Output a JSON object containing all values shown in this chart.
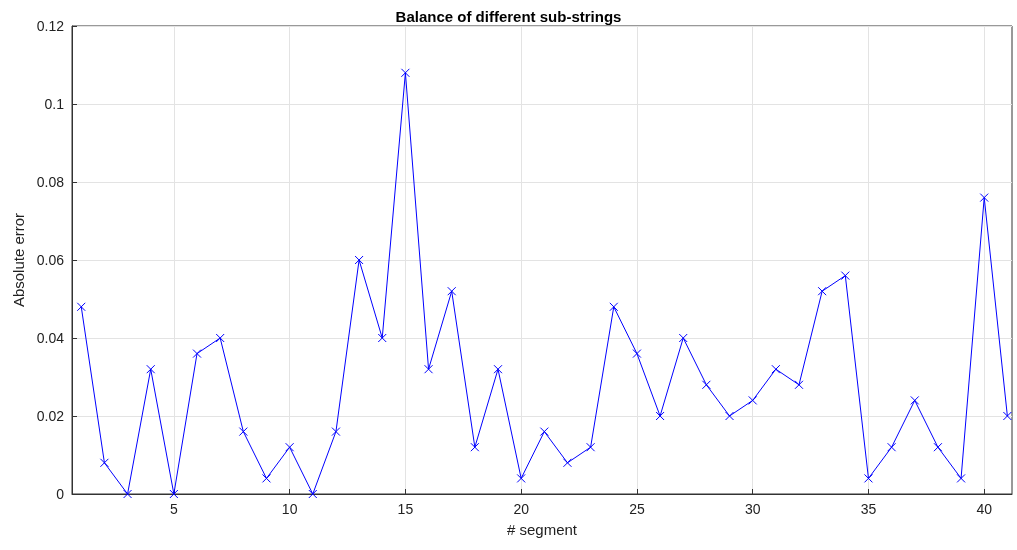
{
  "chart_data": {
    "type": "line",
    "title": "Balance of different sub-strings",
    "xlabel": "# segment",
    "ylabel": "Absolute error",
    "x": [
      1,
      2,
      3,
      4,
      5,
      6,
      7,
      8,
      9,
      10,
      11,
      12,
      13,
      14,
      15,
      16,
      17,
      18,
      19,
      20,
      21,
      22,
      23,
      24,
      25,
      26,
      27,
      28,
      29,
      30,
      31,
      32,
      33,
      34,
      35,
      36,
      37,
      38,
      39,
      40,
      41
    ],
    "series": [
      {
        "color": "#0000ff",
        "values": [
          0.048,
          0.008,
          0,
          0.032,
          0,
          0.036,
          0.04,
          0.016,
          0.004,
          0.012,
          0,
          0.016,
          0.06,
          0.04,
          0.108,
          0.032,
          0.052,
          0.012,
          0.032,
          0.004,
          0.016,
          0.008,
          0.012,
          0.048,
          0.036,
          0.02,
          0.04,
          0.028,
          0.02,
          0.024,
          0.032,
          0.028,
          0.052,
          0.056,
          0.004,
          0.012,
          0.024,
          0.012,
          0.004,
          0.076,
          0.02
        ]
      }
    ],
    "xlim": [
      0.6,
      41.2
    ],
    "xticks": [
      5,
      10,
      15,
      20,
      25,
      30,
      35,
      40
    ],
    "ylim": [
      0,
      0.12
    ],
    "yticks": [
      0,
      0.02,
      0.04,
      0.06,
      0.08,
      0.1,
      0.12
    ],
    "grid": true,
    "marker": "cross",
    "line_style": "solid"
  }
}
